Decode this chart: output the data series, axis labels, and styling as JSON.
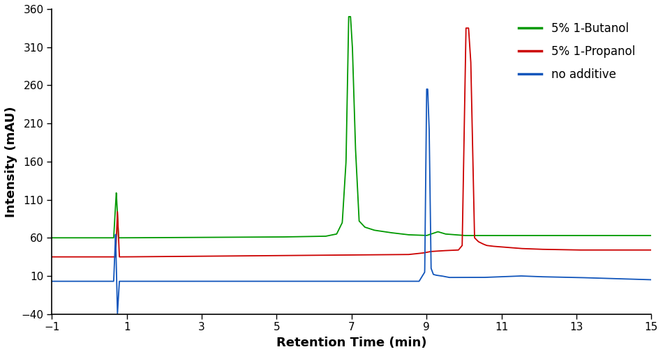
{
  "xlabel": "Retention Time (min)",
  "ylabel": "Intensity (mAU)",
  "xlim": [
    -1,
    15
  ],
  "ylim": [
    -40,
    360
  ],
  "xticks": [
    -1,
    1,
    3,
    5,
    7,
    9,
    11,
    13,
    15
  ],
  "yticks": [
    -40,
    10,
    60,
    110,
    160,
    210,
    260,
    310,
    360
  ],
  "colors": {
    "green": "#009900",
    "red": "#cc0000",
    "blue": "#1155bb"
  },
  "legend": [
    {
      "label": "5% 1-Butanol",
      "color": "#009900"
    },
    {
      "label": "5% 1-Propanol",
      "color": "#cc0000"
    },
    {
      "label": "no additive",
      "color": "#1155bb"
    }
  ],
  "green_keypoints": [
    [
      -1,
      60
    ],
    [
      0.65,
      60
    ],
    [
      0.72,
      120
    ],
    [
      0.78,
      60
    ],
    [
      0.9,
      60
    ],
    [
      5.0,
      61
    ],
    [
      6.3,
      62
    ],
    [
      6.6,
      65
    ],
    [
      6.75,
      80
    ],
    [
      6.85,
      160
    ],
    [
      6.92,
      350
    ],
    [
      6.97,
      350
    ],
    [
      7.02,
      310
    ],
    [
      7.1,
      180
    ],
    [
      7.2,
      82
    ],
    [
      7.35,
      74
    ],
    [
      7.6,
      70
    ],
    [
      8.0,
      67
    ],
    [
      8.5,
      64
    ],
    [
      9.0,
      63
    ],
    [
      9.3,
      68
    ],
    [
      9.5,
      65
    ],
    [
      10.0,
      63
    ],
    [
      12.0,
      63
    ],
    [
      15,
      63
    ]
  ],
  "red_keypoints": [
    [
      -1,
      35
    ],
    [
      0.7,
      35
    ],
    [
      0.75,
      95
    ],
    [
      0.8,
      35
    ],
    [
      0.9,
      35
    ],
    [
      8.5,
      38
    ],
    [
      8.9,
      40
    ],
    [
      9.1,
      42
    ],
    [
      9.4,
      43
    ],
    [
      9.85,
      44
    ],
    [
      9.95,
      50
    ],
    [
      10.05,
      335
    ],
    [
      10.12,
      335
    ],
    [
      10.18,
      290
    ],
    [
      10.28,
      60
    ],
    [
      10.38,
      55
    ],
    [
      10.5,
      52
    ],
    [
      10.6,
      50
    ],
    [
      10.75,
      49
    ],
    [
      11.0,
      48
    ],
    [
      11.5,
      46
    ],
    [
      12.0,
      45
    ],
    [
      13.0,
      44
    ],
    [
      15,
      44
    ]
  ],
  "blue_keypoints": [
    [
      -1,
      3
    ],
    [
      0.65,
      3
    ],
    [
      0.7,
      65
    ],
    [
      0.75,
      -40
    ],
    [
      0.8,
      3
    ],
    [
      0.85,
      3
    ],
    [
      7.5,
      3
    ],
    [
      8.5,
      3
    ],
    [
      8.8,
      3
    ],
    [
      8.95,
      15
    ],
    [
      9.0,
      255
    ],
    [
      9.03,
      255
    ],
    [
      9.07,
      200
    ],
    [
      9.12,
      20
    ],
    [
      9.18,
      12
    ],
    [
      9.25,
      11
    ],
    [
      9.4,
      10
    ],
    [
      9.6,
      8
    ],
    [
      10.0,
      8
    ],
    [
      10.5,
      8
    ],
    [
      11.0,
      9
    ],
    [
      11.5,
      10
    ],
    [
      12.0,
      9
    ],
    [
      13.0,
      8
    ],
    [
      15,
      5
    ]
  ]
}
